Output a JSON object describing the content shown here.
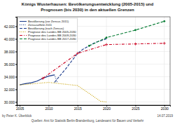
{
  "chart_data": {
    "type": "line",
    "title": "Königs Wusterhausen: Bevölkerungsentwicklung (2005-2015) und",
    "subtitle": "Prognosen (bis 2030) in den aktuellen Grenzen",
    "xlim": [
      2004.5,
      2031
    ],
    "ylim": [
      29500,
      43500
    ],
    "xticks": [
      2005,
      2010,
      2015,
      2020,
      2025,
      2030
    ],
    "yticks": [
      {
        "value": 30000,
        "label": "30.000"
      },
      {
        "value": 32000,
        "label": "32.000"
      },
      {
        "value": 34000,
        "label": "34.000"
      },
      {
        "value": 36000,
        "label": "36.000"
      },
      {
        "value": 38000,
        "label": "38.000"
      },
      {
        "value": 40000,
        "label": "40.000"
      },
      {
        "value": 42000,
        "label": "42.000"
      }
    ],
    "grid": true,
    "legend": "upper left",
    "series": [
      {
        "name": "Bevölkerung (vor Zensus 2011)",
        "color": "#1a3a8a",
        "line_style": "solid",
        "x": [
          2005,
          2006,
          2007,
          2008,
          2009,
          2010,
          2011
        ],
        "values": [
          32700,
          32900,
          33050,
          33300,
          33750,
          34100,
          34300
        ]
      },
      {
        "name": "Zensuseffekt 2011",
        "color": "#1a3a8a",
        "line_style": "dotted",
        "x": [
          2011,
          2011.5
        ],
        "values": [
          34300,
          33100
        ]
      },
      {
        "name": "Bevölkerung (nach Zensus)",
        "color": "#1a3a8a",
        "line_style": "dashed",
        "x": [
          2011,
          2012,
          2013,
          2014,
          2015,
          2016,
          2017,
          2018,
          2019,
          2020
        ],
        "values": [
          33100,
          34200,
          35300,
          36500,
          37700,
          38400,
          38900,
          39400,
          39700,
          40000
        ]
      },
      {
        "name": "Prognose des Landes BB 2005-2030",
        "color": "#c8a000",
        "line_style": "dotted",
        "x": [
          2005,
          2010,
          2015,
          2019,
          2020
        ],
        "values": [
          32700,
          33100,
          32600,
          30100,
          30000
        ]
      },
      {
        "name": "Prognose des Landes BB 2009-2030",
        "color": "#cc0020",
        "line_style": "dashdot",
        "marker": "plus",
        "x": [
          2009,
          2015,
          2020,
          2025,
          2030
        ],
        "values": [
          33750,
          37700,
          39100,
          39200,
          39300
        ]
      },
      {
        "name": "Prognose des Landes BB 2017-2030",
        "color": "#007a30",
        "line_style": "dashed",
        "marker": "circle",
        "x": [
          2017,
          2020,
          2025,
          2030
        ],
        "values": [
          38900,
          40200,
          41400,
          42800
        ]
      }
    ],
    "annotations": [
      "by Peter K. Überblick",
      "Quellen: Amt für Statistik Berlin-Brandenburg, Landesamt für Bauen und Verkehr",
      "14.07.2019"
    ]
  }
}
